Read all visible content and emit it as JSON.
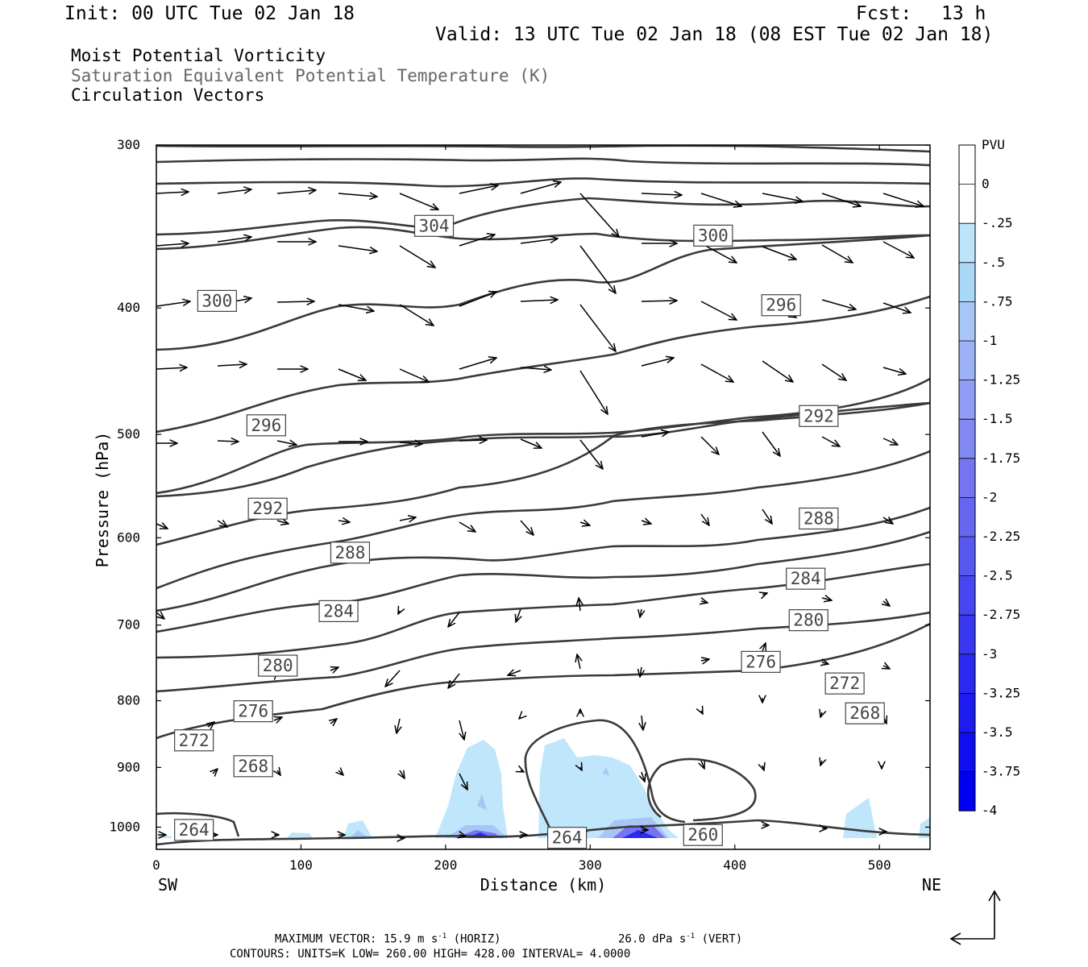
{
  "header": {
    "init": "Init: 00 UTC Tue 02 Jan 18",
    "fcst_label": "Fcst:",
    "fcst_value": "13 h",
    "valid": "Valid: 13 UTC Tue 02 Jan 18 (08 EST Tue 02 Jan 18)",
    "field1": "Moist Potential Vorticity",
    "field2": "Saturation Equivalent Potential Temperature (K)",
    "field3": "Circulation Vectors"
  },
  "footer": {
    "max_vector": "MAXIMUM VECTOR:  15.9 m s",
    "max_vector_exp": "-1",
    "max_vector_horiz": " (HORIZ)",
    "max_vector_vert": "26.0 dPa s",
    "max_vector_vert_exp": "-1",
    "max_vector_vert_tail": " (VERT)",
    "contours": "CONTOURS:  UNITS=K  LOW=  260.00      HIGH=  428.00      INTERVAL=   4.0000"
  },
  "colors": {
    "contour": "#3a3a3a",
    "vector": "#000000",
    "pv_light": "#bfe6fb",
    "pv_dark": "#0000f0"
  },
  "chart_data": {
    "type": "cross-section",
    "xlabel": "Distance (km)",
    "ylabel": "Pressure (hPa)",
    "xlim": [
      0,
      535
    ],
    "ylim": [
      1040,
      300
    ],
    "y_scale": "log",
    "x_ticks": [
      0,
      100,
      200,
      300,
      400,
      500
    ],
    "y_ticks": [
      300,
      400,
      500,
      600,
      700,
      800,
      900,
      1000
    ],
    "x_end_labels": {
      "left": "SW",
      "right": "NE"
    },
    "colorbar": {
      "unit": "PVU",
      "labels": [
        "0",
        "-.25",
        "-.5",
        "-.75",
        "-1",
        "-1.25",
        "-1.5",
        "-1.75",
        "-2",
        "-2.25",
        "-2.5",
        "-2.75",
        "-3",
        "-3.25",
        "-3.5",
        "-3.75",
        "-4"
      ],
      "colors": [
        "#ffffff",
        "#ffffff",
        "#bde4fa",
        "#a9d8f7",
        "#a7c6f5",
        "#9cb2f5",
        "#8f9ef4",
        "#8289f3",
        "#7575f2",
        "#6666f1",
        "#5757f1",
        "#4747f1",
        "#3838f1",
        "#2a2af1",
        "#1c1cf1",
        "#0e0ef1",
        "#0000f0"
      ]
    },
    "contour_labels": [
      {
        "text": "304",
        "x": 192,
        "p": 346
      },
      {
        "text": "300",
        "x": 385,
        "p": 352
      },
      {
        "text": "300",
        "x": 42,
        "p": 395
      },
      {
        "text": "296",
        "x": 432,
        "p": 398
      },
      {
        "text": "296",
        "x": 76,
        "p": 492
      },
      {
        "text": "292",
        "x": 458,
        "p": 484
      },
      {
        "text": "292",
        "x": 77,
        "p": 570
      },
      {
        "text": "288",
        "x": 458,
        "p": 580
      },
      {
        "text": "288",
        "x": 134,
        "p": 616
      },
      {
        "text": "284",
        "x": 449,
        "p": 645
      },
      {
        "text": "284",
        "x": 126,
        "p": 683
      },
      {
        "text": "280",
        "x": 451,
        "p": 694
      },
      {
        "text": "280",
        "x": 84,
        "p": 752
      },
      {
        "text": "276",
        "x": 418,
        "p": 747
      },
      {
        "text": "272",
        "x": 476,
        "p": 776
      },
      {
        "text": "276",
        "x": 67,
        "p": 815
      },
      {
        "text": "268",
        "x": 490,
        "p": 818
      },
      {
        "text": "272",
        "x": 26,
        "p": 858
      },
      {
        "text": "268",
        "x": 67,
        "p": 898
      },
      {
        "text": "264",
        "x": 26,
        "p": 1005
      },
      {
        "text": "264",
        "x": 284,
        "p": 1019
      },
      {
        "text": "260",
        "x": 378,
        "p": 1014
      }
    ]
  }
}
